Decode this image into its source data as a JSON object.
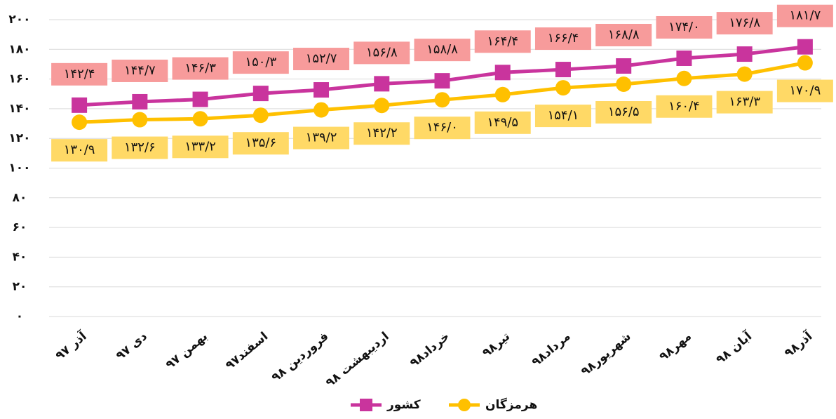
{
  "chart_data": {
    "type": "line",
    "categories": [
      "آذر ۹۷",
      "دی ۹۷",
      "بهمن ۹۷",
      "اسفند۹۷",
      "فروردین ۹۸",
      "اردیبهشت ۹۸",
      "خرداد۹۸",
      "تیر۹۸",
      "مرداد۹۸",
      "شهریور۹۸",
      "مهر۹۸",
      "آبان ۹۸",
      "آذر۹۸"
    ],
    "series": [
      {
        "name": "کشور",
        "color": "#c9349d",
        "marker": "square",
        "label_color": "#f79b9b",
        "values": [
          142.4,
          144.7,
          146.3,
          150.3,
          152.7,
          156.8,
          158.8,
          164.4,
          166.4,
          168.8,
          174.0,
          176.8,
          181.7
        ],
        "value_labels": [
          "۱۴۲/۴",
          "۱۴۴/۷",
          "۱۴۶/۳",
          "۱۵۰/۳",
          "۱۵۲/۷",
          "۱۵۶/۸",
          "۱۵۸/۸",
          "۱۶۴/۴",
          "۱۶۶/۴",
          "۱۶۸/۸",
          "۱۷۴/۰",
          "۱۷۶/۸",
          "۱۸۱/۷"
        ]
      },
      {
        "name": "هرمزگان",
        "color": "#ffc000",
        "marker": "circle",
        "label_color": "#ffd966",
        "values": [
          130.9,
          132.6,
          133.2,
          135.6,
          139.2,
          142.2,
          146.0,
          149.5,
          154.1,
          156.5,
          160.4,
          163.3,
          170.9
        ],
        "value_labels": [
          "۱۳۰/۹",
          "۱۳۲/۶",
          "۱۳۳/۲",
          "۱۳۵/۶",
          "۱۳۹/۲",
          "۱۴۲/۲",
          "۱۴۶/۰",
          "۱۴۹/۵",
          "۱۵۴/۱",
          "۱۵۶/۵",
          "۱۶۰/۴",
          "۱۶۳/۳",
          "۱۷۰/۹"
        ]
      }
    ],
    "ylim": [
      0,
      200
    ],
    "yticks": [
      {
        "value": 0,
        "label": "۰"
      },
      {
        "value": 20,
        "label": "۲۰"
      },
      {
        "value": 40,
        "label": "۴۰"
      },
      {
        "value": 60,
        "label": "۶۰"
      },
      {
        "value": 80,
        "label": "۸۰"
      },
      {
        "value": 100,
        "label": "۱۰۰"
      },
      {
        "value": 120,
        "label": "۱۲۰"
      },
      {
        "value": 140,
        "label": "۱۴۰"
      },
      {
        "value": 160,
        "label": "۱۶۰"
      },
      {
        "value": 180,
        "label": "۱۸۰"
      },
      {
        "value": 200,
        "label": "۲۰۰"
      }
    ],
    "grid": true
  }
}
